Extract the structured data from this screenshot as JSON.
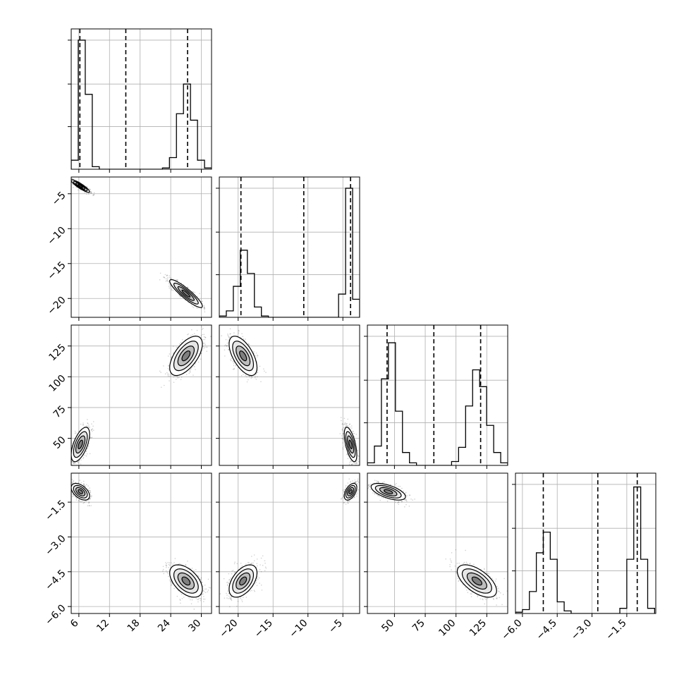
{
  "chart_data": {
    "type": "corner",
    "title": "",
    "parameters": [
      {
        "range": [
          4.5,
          32
        ],
        "ticks": [
          6,
          12,
          18,
          24,
          30
        ],
        "tick_labels": [
          "6",
          "12",
          "18",
          "24",
          "30"
        ],
        "quantile_lines": [
          6.2,
          15.2,
          27.3
        ],
        "hist_bins": [
          4.5,
          5.875,
          7.25,
          8.625,
          10,
          11.375,
          12.75,
          14.125,
          15.5,
          16.875,
          18.25,
          19.625,
          21,
          22.375,
          23.75,
          25.125,
          26.5,
          27.875,
          29.25,
          30.625,
          32
        ],
        "hist_counts": [
          0.07,
          1.0,
          0.58,
          0.02,
          0,
          0,
          0,
          0,
          0,
          0,
          0,
          0,
          0,
          0.01,
          0.09,
          0.43,
          0.66,
          0.38,
          0.07,
          0.01
        ]
      },
      {
        "range": [
          -22.7,
          -2.6
        ],
        "ticks": [
          -20,
          -15,
          -10,
          -5
        ],
        "tick_labels": [
          "−20",
          "−15",
          "−10",
          "−5"
        ],
        "quantile_lines": [
          -19.6,
          -10.6,
          -3.9
        ],
        "hist_bins": [
          -22.7,
          -21.695,
          -20.69,
          -19.685,
          -18.68,
          -17.675,
          -16.67,
          -15.665,
          -14.66,
          -13.655,
          -12.65,
          -11.645,
          -10.64,
          -9.635,
          -8.63,
          -7.625,
          -6.62,
          -5.615,
          -4.61,
          -3.605,
          -2.6
        ],
        "hist_counts": [
          0.01,
          0.05,
          0.24,
          0.52,
          0.34,
          0.08,
          0.01,
          0,
          0,
          0,
          0,
          0,
          0,
          0,
          0,
          0,
          0,
          0.18,
          1.0,
          0.14
        ]
      },
      {
        "range": [
          28,
          142
        ],
        "ticks": [
          50,
          75,
          100,
          125
        ],
        "tick_labels": [
          "50",
          "75",
          "100",
          "125"
        ],
        "quantile_lines": [
          44,
          82,
          120
        ],
        "hist_bins": [
          28,
          33.7,
          39.4,
          45.1,
          50.8,
          56.5,
          62.2,
          67.9,
          73.6,
          79.3,
          85,
          90.7,
          96.4,
          102.1,
          107.8,
          113.5,
          119.2,
          124.9,
          130.6,
          136.3,
          142
        ],
        "hist_counts": [
          0.02,
          0.15,
          0.67,
          0.95,
          0.42,
          0.1,
          0.02,
          0,
          0,
          0,
          0,
          0,
          0.03,
          0.14,
          0.46,
          0.74,
          0.61,
          0.31,
          0.1,
          0.02
        ]
      },
      {
        "range": [
          -6.3,
          -0.25
        ],
        "ticks": [
          -6.0,
          -4.5,
          -3.0,
          -1.5
        ],
        "tick_labels": [
          "−6.0",
          "−4.5",
          "−3.0",
          "−1.5"
        ],
        "quantile_lines": [
          -5.1,
          -2.75,
          -1.05
        ],
        "hist_bins": [
          -6.3,
          -6.0,
          -5.7,
          -5.4,
          -5.1,
          -4.8,
          -4.5,
          -4.2,
          -3.9,
          -3.6,
          -3.3,
          -3.0,
          -2.7,
          -2.4,
          -2.1,
          -1.8,
          -1.5,
          -1.2,
          -0.9,
          -0.6,
          -0.3
        ],
        "hist_counts": [
          0.01,
          0.03,
          0.17,
          0.47,
          0.63,
          0.42,
          0.09,
          0.02,
          0,
          0,
          0,
          0,
          0,
          0,
          0,
          0.04,
          0.42,
          0.98,
          0.42,
          0.04
        ]
      }
    ],
    "modes": [
      {
        "mean": [
          6.3,
          -3.9,
          45,
          -1.05
        ],
        "sd": [
          0.9,
          0.45,
          7,
          0.18
        ]
      },
      {
        "mean": [
          27,
          -19.3,
          117,
          -4.9
        ],
        "sd": [
          1.6,
          1.0,
          8,
          0.35
        ]
      }
    ],
    "correlations": [
      [
        1,
        -0.9,
        0.6,
        -0.5
      ],
      [
        -0.9,
        1,
        -0.6,
        0.5
      ],
      [
        0.6,
        -0.6,
        1,
        -0.6
      ],
      [
        -0.5,
        0.5,
        -0.6,
        1
      ]
    ],
    "contour_levels_sigma": [
      0.5,
      1.0,
      1.5,
      2.0
    ],
    "grid": true,
    "line_color": "#000000",
    "sample_color": "#000000",
    "fill_color": "#7f7f7f",
    "grid_color": "#b0b0b0"
  }
}
